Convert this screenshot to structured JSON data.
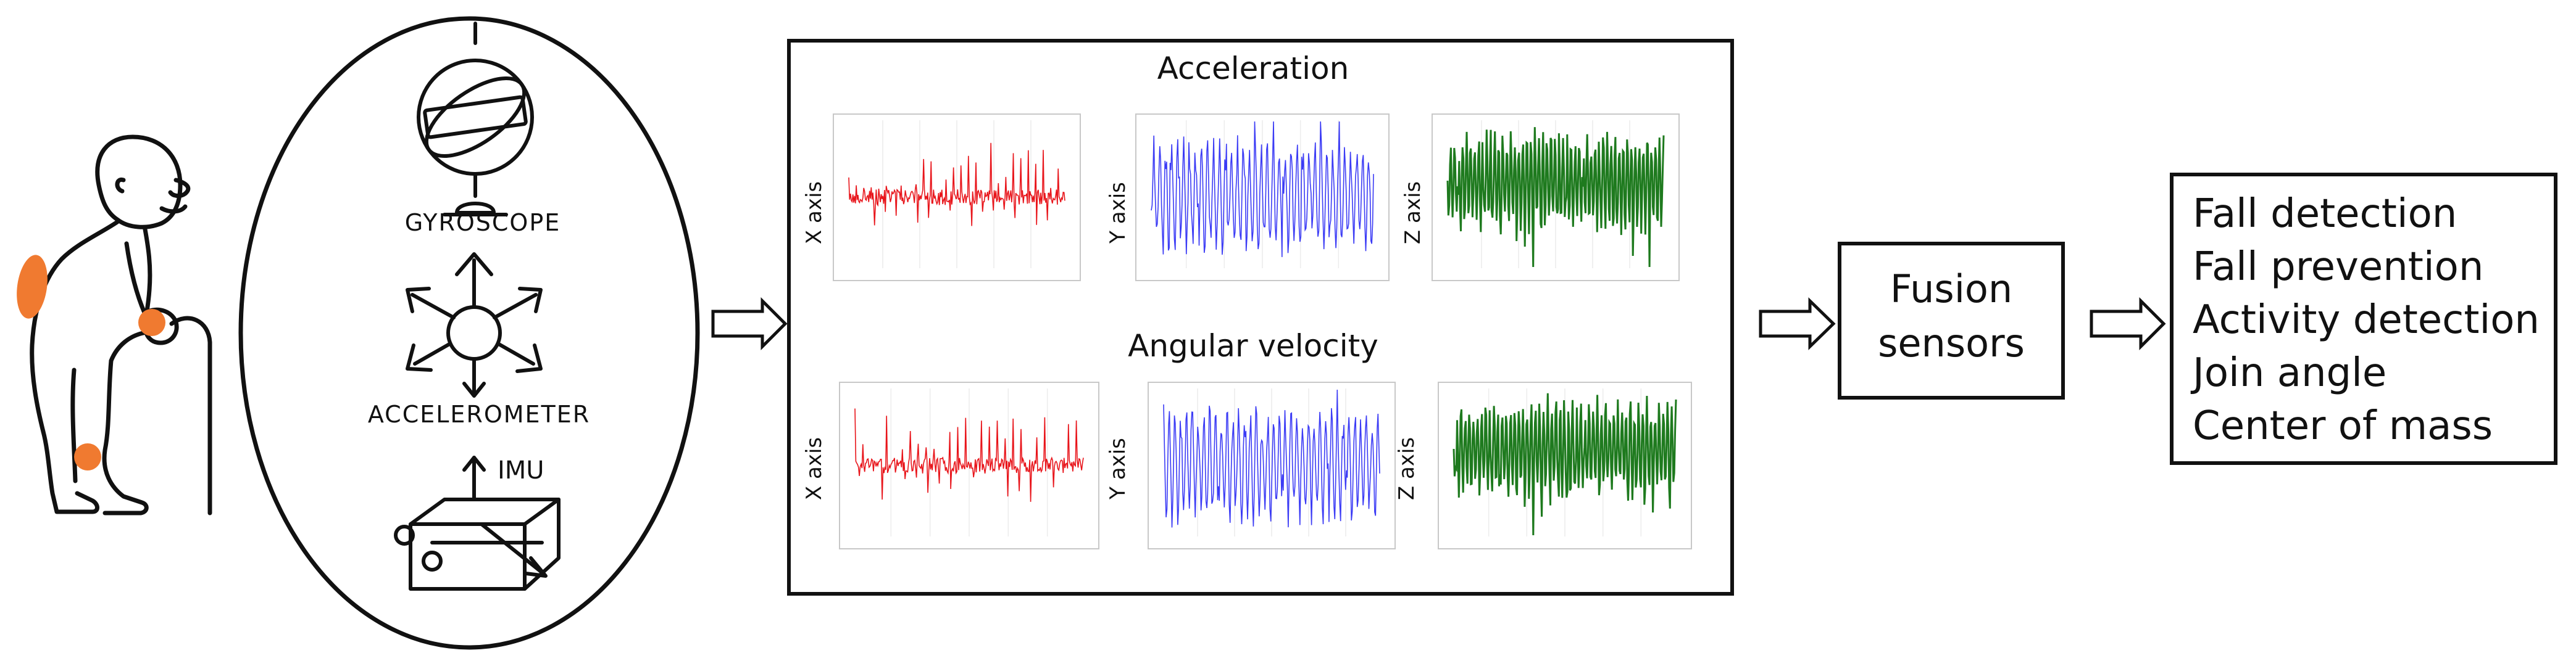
{
  "colors": {
    "sensor_dots": "#f07a30",
    "x_series": "#e8141a",
    "y_series": "#3b3bf5",
    "z_series": "#1e7a1e",
    "stroke": "#111111"
  },
  "sensors": {
    "gyroscope_label": "GYROSCOPE",
    "accelerometer_label": "ACCELEROMETER",
    "imu_label": "IMU"
  },
  "signals": {
    "acceleration_title": "Acceleration",
    "angular_velocity_title": "Angular velocity",
    "x_axis_label": "X axis",
    "y_axis_label": "Y axis",
    "z_axis_label": "Z axis"
  },
  "fusion": {
    "line1": "Fusion",
    "line2": "sensors"
  },
  "applications": [
    "Fall detection",
    "Fall prevention",
    "Activity detection",
    "Join angle",
    "Center of mass"
  ]
}
